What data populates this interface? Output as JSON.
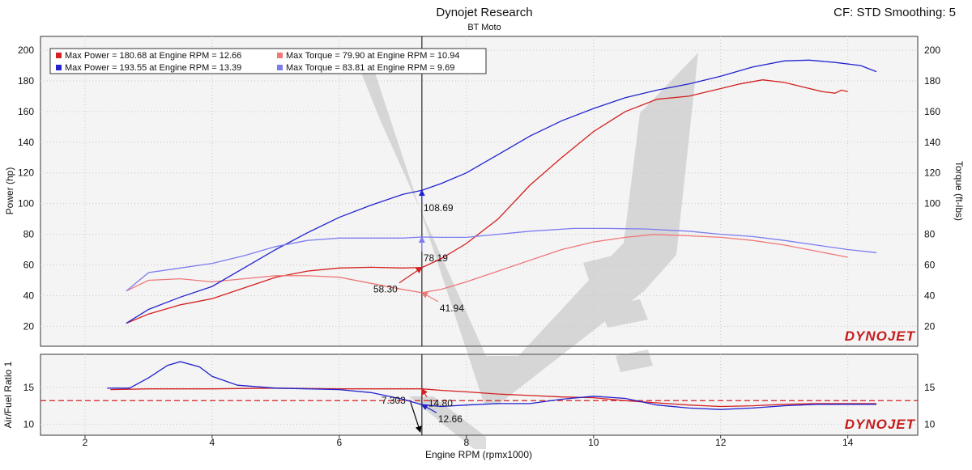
{
  "header": {
    "title": "Dynojet Research",
    "subtitle": "BT Moto",
    "cf_label": "CF: STD Smoothing: 5"
  },
  "colors": {
    "run1_power": "#d42020",
    "run1_torque": "#f07878",
    "run2_power": "#2222d0",
    "run2_torque": "#7c7cf0",
    "afr_target": "#d42020",
    "cursor": "#000000"
  },
  "logo_text": "DYNOJET",
  "chart_data": [
    {
      "type": "line",
      "panel": "power-torque",
      "xlabel": "Engine RPM (rpmx1000)",
      "ylabel": "Power (hp)",
      "y2label": "Torque (ft-lbs)",
      "xlim": [
        1.3,
        15.1
      ],
      "ylim": [
        7,
        209
      ],
      "x_ticks": [
        2,
        4,
        6,
        8,
        10,
        12,
        14
      ],
      "y_ticks": [
        20,
        40,
        60,
        80,
        100,
        120,
        140,
        160,
        180,
        200
      ],
      "grid": true,
      "legend": [
        {
          "series": "run1_power",
          "text": "Max Power = 180.68 at Engine RPM = 12.66"
        },
        {
          "series": "run1_torque",
          "text": "Max Torque = 79.90 at Engine RPM = 10.94"
        },
        {
          "series": "run2_power",
          "text": "Max Power = 193.55 at Engine RPM = 13.39"
        },
        {
          "series": "run2_torque",
          "text": "Max Torque = 83.81 at Engine RPM = 9.69"
        }
      ],
      "cursor_x": 7.3,
      "cursor_labels": [
        {
          "series": "run2_power",
          "value": "108.69",
          "y": 108.69
        },
        {
          "series": "run2_torque",
          "value": "78.19",
          "y": 78.19
        },
        {
          "series": "run1_power",
          "value": "58.30",
          "y": 58.3
        },
        {
          "series": "run1_torque",
          "value": "41.94",
          "y": 41.94
        }
      ],
      "series": [
        {
          "id": "run1_power",
          "x": [
            2.65,
            3,
            3.5,
            4,
            4.5,
            5,
            5.5,
            6,
            6.5,
            7,
            7.3,
            7.6,
            8,
            8.5,
            9,
            9.5,
            10,
            10.5,
            11,
            11.5,
            12,
            12.3,
            12.66,
            13,
            13.3,
            13.6,
            13.8,
            13.9,
            14
          ],
          "y": [
            22,
            28,
            34,
            38,
            45,
            52,
            56,
            58,
            58.5,
            58,
            58.3,
            64,
            74,
            90,
            112,
            130,
            147,
            160,
            168,
            170,
            175,
            178,
            180.7,
            179,
            176,
            173,
            172,
            174,
            173
          ]
        },
        {
          "id": "run1_torque",
          "x": [
            2.65,
            3,
            3.5,
            4,
            4.5,
            5,
            5.5,
            6,
            6.5,
            7,
            7.3,
            7.6,
            8,
            8.5,
            9,
            9.5,
            10,
            10.5,
            10.94,
            11.5,
            12,
            12.5,
            13,
            13.5,
            14
          ],
          "y": [
            43,
            50,
            51,
            49,
            51,
            53,
            53,
            52,
            48,
            44,
            41.94,
            44,
            49,
            56,
            63,
            70,
            75,
            78,
            79.9,
            79,
            78,
            76,
            73,
            69,
            65
          ]
        },
        {
          "id": "run2_power",
          "x": [
            2.65,
            3,
            3.5,
            4,
            4.5,
            5,
            5.5,
            6,
            6.5,
            7,
            7.3,
            7.6,
            8,
            8.5,
            9,
            9.5,
            10,
            10.5,
            11,
            11.5,
            12,
            12.5,
            13,
            13.39,
            13.8,
            14.2,
            14.45
          ],
          "y": [
            22,
            31,
            39,
            46,
            58,
            70,
            81,
            91,
            99,
            106,
            108.69,
            113,
            120,
            132,
            144,
            154,
            162,
            169,
            174,
            178,
            183,
            189,
            193,
            193.55,
            192,
            190,
            186
          ]
        },
        {
          "id": "run2_torque",
          "x": [
            2.65,
            3,
            3.5,
            4,
            4.5,
            5,
            5.5,
            6,
            6.5,
            7,
            7.3,
            7.6,
            8,
            8.5,
            9,
            9.69,
            10.2,
            10.8,
            11.5,
            12,
            12.5,
            13,
            13.5,
            14,
            14.45
          ],
          "y": [
            43,
            55,
            58,
            61,
            66,
            72,
            76,
            77.5,
            77.5,
            77.5,
            78.19,
            78,
            78,
            80,
            82,
            83.81,
            83.8,
            83.5,
            82,
            80,
            78.5,
            76,
            73,
            70,
            68
          ]
        }
      ]
    },
    {
      "type": "line",
      "panel": "air-fuel",
      "xlabel": "Engine RPM (rpmx1000)",
      "ylabel": "Air/Fuel Ratio 1",
      "xlim": [
        1.3,
        15.1
      ],
      "ylim": [
        8.5,
        19.5
      ],
      "y_ticks": [
        10,
        15
      ],
      "grid": true,
      "target_afr": 13.2,
      "cursor_x": 7.3,
      "cursor_labels": [
        {
          "series": "run1_afr",
          "value": "14.80",
          "y": 14.8
        },
        {
          "series": "run2_afr",
          "value": "12.66",
          "y": 12.66
        },
        {
          "series": "cursor",
          "value": "7.303",
          "y": 13.0
        }
      ],
      "series": [
        {
          "id": "run1_afr",
          "color_key": "run1_power",
          "x": [
            2.4,
            3,
            4,
            5,
            6,
            6.5,
            7,
            7.3,
            7.6,
            8,
            8.5,
            9,
            9.5,
            10,
            10.5,
            11,
            11.5,
            12,
            12.5,
            13,
            13.5,
            14,
            14.45
          ],
          "y": [
            14.7,
            14.8,
            14.8,
            14.9,
            14.8,
            14.8,
            14.8,
            14.8,
            14.6,
            14.4,
            14.1,
            13.9,
            13.7,
            13.6,
            13.2,
            12.9,
            12.6,
            12.4,
            12.5,
            12.7,
            12.8,
            12.8,
            12.8
          ]
        },
        {
          "id": "run2_afr",
          "color_key": "run2_power",
          "x": [
            2.35,
            2.7,
            3,
            3.3,
            3.5,
            3.8,
            4,
            4.4,
            5,
            5.5,
            6,
            6.5,
            7,
            7.3,
            7.6,
            8,
            8.5,
            9,
            9.5,
            10,
            10.5,
            11,
            11.5,
            12,
            12.5,
            13,
            13.5,
            14,
            14.45
          ],
          "y": [
            14.9,
            14.9,
            16.3,
            18,
            18.5,
            17.8,
            16.5,
            15.3,
            14.9,
            14.8,
            14.7,
            14.3,
            13.4,
            12.66,
            12.4,
            12.6,
            12.8,
            12.8,
            13.4,
            13.8,
            13.5,
            12.6,
            12.2,
            12.0,
            12.2,
            12.5,
            12.7,
            12.7,
            12.7
          ]
        }
      ]
    }
  ]
}
